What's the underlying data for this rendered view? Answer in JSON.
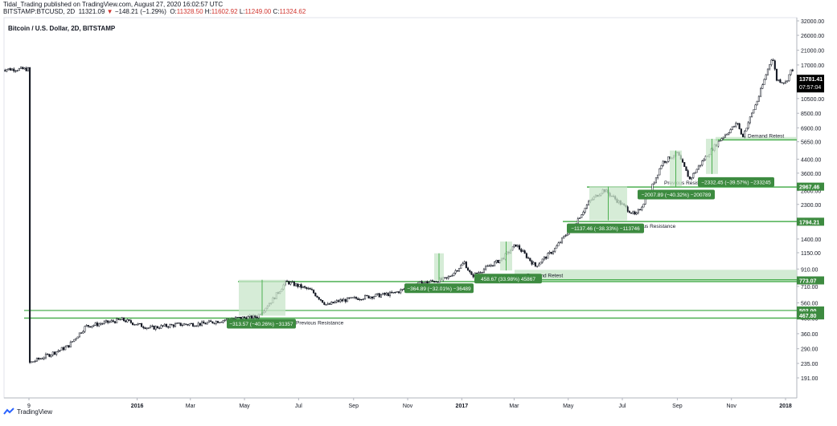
{
  "header": {
    "line1": "Tidal_Trading published on TradingView.com, August 27, 2020 16:02:57 UTC",
    "symbol": "BITSTAMP:BTCUSD, 2D",
    "last": "11321.09",
    "arrow": "▼",
    "change": "−148.21 (−1.29%)",
    "o": "O:",
    "o_val": "11328.50",
    "h": "H:",
    "h_val": "11602.92",
    "l": "L:",
    "l_val": "11249.00",
    "c": "C:",
    "c_val": "11324.62"
  },
  "legend": "Bitcoin / U.S. Dollar, 2D, BITSTAMP",
  "footer": "TradingView",
  "colors": {
    "green": "#4caf50",
    "green_fill": "#c8e6c9",
    "label_bg": "#3d8b40",
    "candle": "#131722",
    "price_tag": "#000000"
  },
  "chart_data": {
    "type": "line",
    "scale": "log",
    "title": "Bitcoin / U.S. Dollar, 2D, BITSTAMP",
    "x_ticks": [
      "9",
      "2016",
      "Mar",
      "May",
      "Jul",
      "Sep",
      "Nov",
      "2017",
      "Mar",
      "May",
      "Jul",
      "Sep",
      "Nov",
      "2018"
    ],
    "y_ticks": [
      191,
      235,
      290,
      360,
      450,
      560,
      710,
      910,
      1150,
      1400,
      1800,
      2300,
      2800,
      3600,
      4400,
      5650,
      6900,
      8500,
      10500,
      13500,
      17000,
      21000,
      26000,
      32000
    ],
    "y_tick_labels": [
      "191.00",
      "235.00",
      "290.00",
      "360.00",
      "450.00",
      "560.00",
      "710.00",
      "910.00",
      "1150.00",
      "1400.00",
      "1800.00",
      "2300.00",
      "2800.00",
      "3600.00",
      "4400.00",
      "5650.00",
      "6900.00",
      "8500.00",
      "10500.00",
      "13500.00",
      "17000.00",
      "21000.00",
      "26000.00",
      "32000.00"
    ],
    "ylim": [
      160,
      34000
    ],
    "close_series": {
      "x": [
        "2015-09-01",
        "2015-10-15",
        "2015-11-04",
        "2015-12-15",
        "2016-01-15",
        "2016-02-15",
        "2016-03-15",
        "2016-04-15",
        "2016-05-15",
        "2016-06-01",
        "2016-06-17",
        "2016-07-15",
        "2016-08-02",
        "2016-08-15",
        "2016-09-15",
        "2016-10-15",
        "2016-11-15",
        "2016-12-15",
        "2017-01-04",
        "2017-01-12",
        "2017-02-15",
        "2017-03-03",
        "2017-03-25",
        "2017-04-15",
        "2017-05-10",
        "2017-05-25",
        "2017-06-10",
        "2017-07-16",
        "2017-08-01",
        "2017-08-15",
        "2017-09-01",
        "2017-09-15",
        "2017-10-01",
        "2017-10-20",
        "2017-11-08",
        "2017-11-13",
        "2017-12-01",
        "2017-12-17",
        "2017-12-22",
        "2018-01-01",
        "2018-01-08"
      ],
      "y": [
        235,
        300,
        400,
        440,
        390,
        410,
        415,
        445,
        460,
        580,
        760,
        670,
        540,
        575,
        610,
        640,
        740,
        790,
        1000,
        820,
        1050,
        1290,
        950,
        1200,
        1800,
        2400,
        2850,
        1950,
        2750,
        4200,
        4800,
        3300,
        4400,
        5900,
        7400,
        6000,
        10500,
        19400,
        13800,
        13200,
        16000
      ]
    },
    "zones": [
      {
        "label": "Previous Resistance",
        "price": 450
      },
      {
        "label": "Previous Resistance",
        "price": 760
      },
      {
        "label": "Demand Retest",
        "price": 780
      },
      {
        "label": "Previous Resistance",
        "price": 1800
      },
      {
        "label": "Previous Resistance",
        "price": 2950
      },
      {
        "label": "Demand Retest",
        "price": 5800
      }
    ],
    "price_lines": [
      {
        "label": "502.00",
        "value": 502
      },
      {
        "label": "467.80",
        "value": 467.8
      },
      {
        "label": "773.07",
        "value": 773.07
      },
      {
        "label": "1794.21",
        "value": 1794.21
      },
      {
        "label": "2967.46",
        "value": 2967.46
      }
    ],
    "measurements": [
      {
        "text": "−313.57 (−40.26%) −31357",
        "from_price": 780,
        "to_price": 466
      },
      {
        "text": "−364.89 (−32.01%) −36489",
        "from_price": 1140,
        "to_price": 775
      },
      {
        "text": "458.67 (33.98%) 45867",
        "from_price": 1350,
        "to_price": 891
      },
      {
        "text": "−1137.46 (−38.33%) −113746",
        "from_price": 2967,
        "to_price": 1830
      },
      {
        "text": "−2007.89 (−40.32%) −200789",
        "from_price": 4980,
        "to_price": 2972
      },
      {
        "text": "−2332.45 (−39.57%) −233245",
        "from_price": 5895,
        "to_price": 3560
      }
    ],
    "current_price": "13781.41",
    "countdown": "07:57:04"
  }
}
